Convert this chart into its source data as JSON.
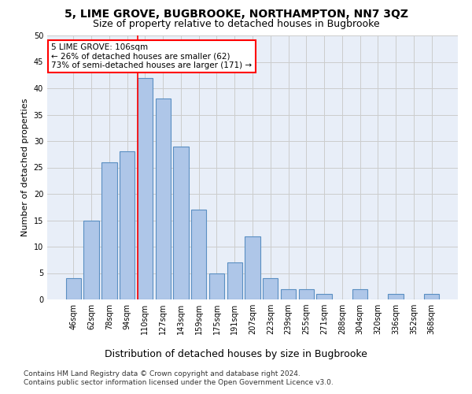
{
  "title": "5, LIME GROVE, BUGBROOKE, NORTHAMPTON, NN7 3QZ",
  "subtitle": "Size of property relative to detached houses in Bugbrooke",
  "xlabel": "Distribution of detached houses by size in Bugbrooke",
  "ylabel": "Number of detached properties",
  "categories": [
    "46sqm",
    "62sqm",
    "78sqm",
    "94sqm",
    "110sqm",
    "127sqm",
    "143sqm",
    "159sqm",
    "175sqm",
    "191sqm",
    "207sqm",
    "223sqm",
    "239sqm",
    "255sqm",
    "271sqm",
    "288sqm",
    "304sqm",
    "320sqm",
    "336sqm",
    "352sqm",
    "368sqm"
  ],
  "values": [
    4,
    15,
    26,
    28,
    42,
    38,
    29,
    17,
    5,
    7,
    12,
    4,
    2,
    2,
    1,
    0,
    2,
    0,
    1,
    0,
    1
  ],
  "bar_color": "#aec6e8",
  "bar_edge_color": "#5a8fc2",
  "annotation_box_text": "5 LIME GROVE: 106sqm\n← 26% of detached houses are smaller (62)\n73% of semi-detached houses are larger (171) →",
  "annotation_box_color": "white",
  "annotation_box_edge_color": "red",
  "vline_x_index": 4,
  "vline_color": "red",
  "ylim": [
    0,
    50
  ],
  "yticks": [
    0,
    5,
    10,
    15,
    20,
    25,
    30,
    35,
    40,
    45,
    50
  ],
  "grid_color": "#cccccc",
  "background_color": "#e8eef8",
  "footer_line1": "Contains HM Land Registry data © Crown copyright and database right 2024.",
  "footer_line2": "Contains public sector information licensed under the Open Government Licence v3.0.",
  "title_fontsize": 10,
  "subtitle_fontsize": 9,
  "xlabel_fontsize": 9,
  "ylabel_fontsize": 8,
  "tick_fontsize": 7,
  "annotation_fontsize": 7.5,
  "footer_fontsize": 6.5
}
